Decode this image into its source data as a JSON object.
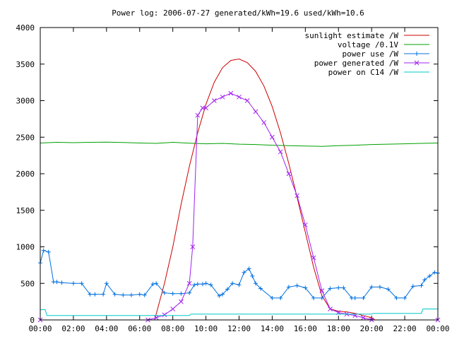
{
  "chart_data": {
    "type": "line",
    "title": "Power log: 2006-07-27 generated/kWh=19.6 used/kWh=10.6",
    "xlabel": "",
    "ylabel": "",
    "xlim": [
      0,
      24
    ],
    "ylim": [
      0,
      4000
    ],
    "x_ticks": [
      {
        "value": 0,
        "label": "00:00"
      },
      {
        "value": 2,
        "label": "02:00"
      },
      {
        "value": 4,
        "label": "04:00"
      },
      {
        "value": 6,
        "label": "06:00"
      },
      {
        "value": 8,
        "label": "08:00"
      },
      {
        "value": 10,
        "label": "10:00"
      },
      {
        "value": 12,
        "label": "12:00"
      },
      {
        "value": 14,
        "label": "14:00"
      },
      {
        "value": 16,
        "label": "16:00"
      },
      {
        "value": 18,
        "label": "18:00"
      },
      {
        "value": 20,
        "label": "20:00"
      },
      {
        "value": 22,
        "label": "22:00"
      },
      {
        "value": 24,
        "label": "00:00"
      }
    ],
    "y_ticks": [
      {
        "value": 0,
        "label": "0"
      },
      {
        "value": 500,
        "label": "500"
      },
      {
        "value": 1000,
        "label": "1000"
      },
      {
        "value": 1500,
        "label": "1500"
      },
      {
        "value": 2000,
        "label": "2000"
      },
      {
        "value": 2500,
        "label": "2500"
      },
      {
        "value": 3000,
        "label": "3000"
      },
      {
        "value": 3500,
        "label": "3500"
      },
      {
        "value": 4000,
        "label": "4000"
      }
    ],
    "grid": false,
    "legend_position": "top-right",
    "series": [
      {
        "name": "sunlight estimate /W",
        "color": "#cc0000",
        "style": "line",
        "x": [
          0,
          6.9,
          7.5,
          8,
          8.5,
          9,
          9.5,
          10,
          10.5,
          11,
          11.5,
          12,
          12.5,
          13,
          13.5,
          14,
          14.5,
          15,
          15.5,
          16,
          16.5,
          17,
          17.5,
          18,
          18.5,
          19,
          19.5,
          20,
          20.2,
          24
        ],
        "y": [
          0,
          0,
          500,
          1000,
          1580,
          2100,
          2560,
          2950,
          3250,
          3450,
          3550,
          3570,
          3520,
          3400,
          3200,
          2920,
          2560,
          2140,
          1680,
          1200,
          720,
          330,
          150,
          120,
          110,
          90,
          60,
          30,
          0,
          0
        ]
      },
      {
        "name": "voltage /0.1V",
        "color": "#00a000",
        "style": "line",
        "x": [
          0,
          1,
          2,
          3,
          4,
          5,
          6,
          7,
          8,
          9,
          10,
          11,
          12,
          13,
          14,
          15,
          16,
          17,
          18,
          19,
          20,
          21,
          22,
          23,
          24
        ],
        "y": [
          2420,
          2430,
          2425,
          2430,
          2432,
          2428,
          2420,
          2415,
          2430,
          2418,
          2410,
          2415,
          2405,
          2400,
          2390,
          2385,
          2380,
          2375,
          2385,
          2390,
          2400,
          2405,
          2410,
          2415,
          2420
        ]
      },
      {
        "name": "power use /W",
        "color": "#0070e0",
        "style": "linespoints-plus",
        "x": [
          0,
          0.2,
          0.5,
          0.8,
          1,
          1.3,
          2,
          2.5,
          3,
          3.3,
          3.8,
          4,
          4.5,
          5,
          5.5,
          6,
          6.3,
          6.8,
          7,
          7.5,
          8,
          8.5,
          9,
          9.3,
          9.5,
          9.8,
          10,
          10.3,
          10.8,
          11,
          11.3,
          11.6,
          12,
          12.3,
          12.6,
          12.8,
          13,
          13.3,
          14,
          14.5,
          15,
          15.5,
          16,
          16.5,
          17,
          17.5,
          18,
          18.3,
          18.8,
          19,
          19.5,
          20,
          20.5,
          21,
          21.5,
          22,
          22.5,
          23,
          23.2,
          23.5,
          23.8,
          24
        ],
        "y": [
          780,
          950,
          930,
          520,
          520,
          510,
          500,
          500,
          350,
          350,
          350,
          500,
          350,
          340,
          340,
          350,
          340,
          490,
          500,
          370,
          360,
          360,
          370,
          480,
          490,
          490,
          500,
          480,
          330,
          350,
          420,
          500,
          480,
          650,
          700,
          600,
          500,
          430,
          300,
          300,
          450,
          470,
          440,
          300,
          300,
          430,
          440,
          440,
          300,
          300,
          300,
          450,
          450,
          420,
          300,
          300,
          460,
          470,
          550,
          600,
          650,
          640
        ]
      },
      {
        "name": "power generated /W",
        "color": "#a020f0",
        "style": "linespoints-cross",
        "x": [
          0,
          6.5,
          7,
          7.5,
          8,
          8.5,
          9,
          9.2,
          9.5,
          9.8,
          10,
          10.5,
          11,
          11.5,
          12,
          12.5,
          13,
          13.5,
          14,
          14.5,
          15,
          15.5,
          16,
          16.5,
          17,
          17.5,
          18,
          18.5,
          19,
          19.5,
          20,
          24
        ],
        "y": [
          0,
          0,
          30,
          70,
          150,
          250,
          500,
          1000,
          2800,
          2900,
          2900,
          3000,
          3050,
          3100,
          3050,
          3000,
          2850,
          2700,
          2500,
          2300,
          2000,
          1700,
          1300,
          850,
          400,
          150,
          100,
          80,
          60,
          30,
          0,
          0
        ]
      },
      {
        "name": "power on C14 /W",
        "color": "#00c8c8",
        "style": "line",
        "x": [
          0,
          0.3,
          0.4,
          9,
          9.1,
          20,
          20.1,
          23,
          23.1,
          24
        ],
        "y": [
          140,
          140,
          60,
          60,
          80,
          80,
          90,
          90,
          150,
          150
        ]
      }
    ]
  }
}
